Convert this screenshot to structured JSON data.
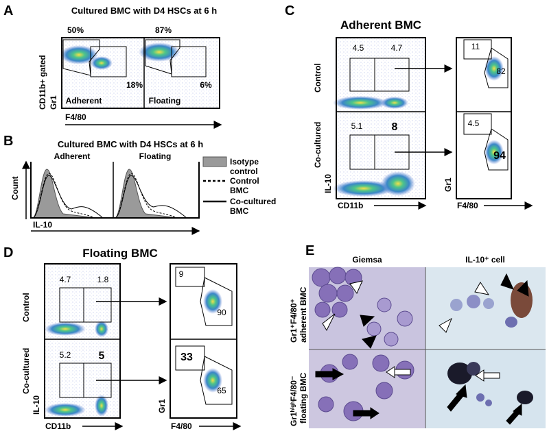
{
  "panels": {
    "A": {
      "label": "A",
      "title": "Cultured BMC with D4 HSCs at 6 h",
      "y_label_top": "CD11b+ gated",
      "y_label": "Gr1",
      "x_label": "F4/80",
      "gates": [
        "50%",
        "87%",
        "18%",
        "6%"
      ],
      "subplots": [
        "Adherent",
        "Floating"
      ]
    },
    "B": {
      "label": "B",
      "title": "Cultured BMC with D4 HSCs at 6 h",
      "subplots": [
        "Adherent",
        "Floating"
      ],
      "y_label": "Count",
      "x_label": "IL-10",
      "legend": [
        [
          "Isotype",
          "control"
        ],
        [
          "Control",
          "BMC"
        ],
        [
          "Co-cultured",
          "BMC"
        ]
      ]
    },
    "C": {
      "label": "C",
      "title": "Adherent BMC",
      "row_labels": [
        "Control",
        "Co-cultured"
      ],
      "y_label": "IL-10",
      "x_label": "CD11b",
      "left_gates": [
        "4.5",
        "4.7",
        "5.1",
        "8"
      ],
      "right_y_label": "Gr1",
      "right_x_label": "F4/80",
      "right_gates": [
        "11",
        "82",
        "4.5",
        "94"
      ]
    },
    "D": {
      "label": "D",
      "title": "Floating BMC",
      "row_labels": [
        "Control",
        "Co-cultured"
      ],
      "y_label": "IL-10",
      "x_label": "CD11b",
      "left_gates": [
        "4.7",
        "1.8",
        "5.2",
        "5"
      ],
      "right_y_label": "Gr1",
      "right_x_label": "F4/80",
      "right_gates": [
        "9",
        "90",
        "33",
        "65"
      ]
    },
    "E": {
      "label": "E",
      "columns": [
        "Giemsa",
        "IL-10⁺ cell"
      ],
      "rows": [
        [
          "Gr1⁺F4/80⁺",
          "adherent BMC"
        ],
        [
          "Gr1ʰⁱᵍʰF4/80⁻",
          "floating BMC"
        ]
      ]
    }
  }
}
